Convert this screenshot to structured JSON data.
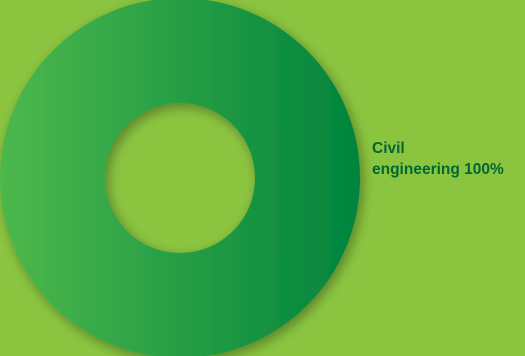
{
  "colors": {
    "background": "#8bc540",
    "slice_gradient_start": "#4db84c",
    "slice_gradient_end": "#00843d",
    "label_text": "#006633"
  },
  "chart_data": {
    "type": "pie",
    "variant": "donut",
    "title": "",
    "slices": [
      {
        "label_line1": "Civil",
        "label_line2": "engineering 100%",
        "label": "Civil engineering",
        "value": 100,
        "percent": 100
      }
    ],
    "legend": "none",
    "data_labels": "right of chart"
  }
}
